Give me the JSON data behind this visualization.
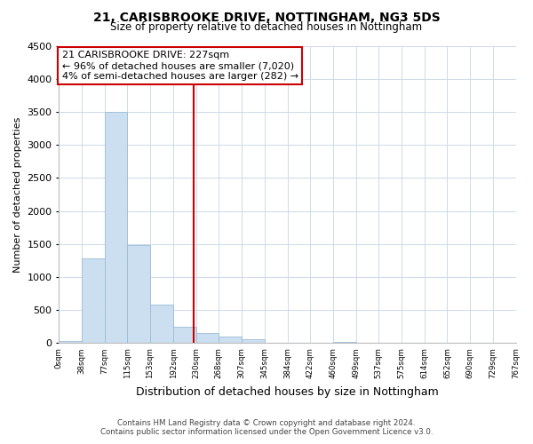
{
  "title": "21, CARISBROOKE DRIVE, NOTTINGHAM, NG3 5DS",
  "subtitle": "Size of property relative to detached houses in Nottingham",
  "xlabel": "Distribution of detached houses by size in Nottingham",
  "ylabel": "Number of detached properties",
  "bar_edges": [
    0,
    38,
    77,
    115,
    153,
    192,
    230,
    268,
    307,
    345,
    384,
    422,
    460,
    499,
    537,
    575,
    614,
    652,
    690,
    729,
    767
  ],
  "bar_heights": [
    30,
    1280,
    3500,
    1480,
    580,
    250,
    150,
    100,
    60,
    10,
    0,
    0,
    20,
    0,
    0,
    0,
    0,
    0,
    0,
    0
  ],
  "bar_color": "#ccdff0",
  "bar_edge_color": "#9abcd8",
  "property_line_x": 227,
  "property_line_color": "#cc0000",
  "ylim": [
    0,
    4500
  ],
  "xlim": [
    0,
    767
  ],
  "annotation_title": "21 CARISBROOKE DRIVE: 227sqm",
  "annotation_line1": "← 96% of detached houses are smaller (7,020)",
  "annotation_line2": "4% of semi-detached houses are larger (282) →",
  "annotation_box_color": "#ffffff",
  "annotation_box_edge": "#cc0000",
  "tick_labels": [
    "0sqm",
    "38sqm",
    "77sqm",
    "115sqm",
    "153sqm",
    "192sqm",
    "230sqm",
    "268sqm",
    "307sqm",
    "345sqm",
    "384sqm",
    "422sqm",
    "460sqm",
    "499sqm",
    "537sqm",
    "575sqm",
    "614sqm",
    "652sqm",
    "690sqm",
    "729sqm",
    "767sqm"
  ],
  "tick_positions": [
    0,
    38,
    77,
    115,
    153,
    192,
    230,
    268,
    307,
    345,
    384,
    422,
    460,
    499,
    537,
    575,
    614,
    652,
    690,
    729,
    767
  ],
  "footer_line1": "Contains HM Land Registry data © Crown copyright and database right 2024.",
  "footer_line2": "Contains public sector information licensed under the Open Government Licence v3.0.",
  "background_color": "#ffffff",
  "grid_color": "#ccdaeb"
}
